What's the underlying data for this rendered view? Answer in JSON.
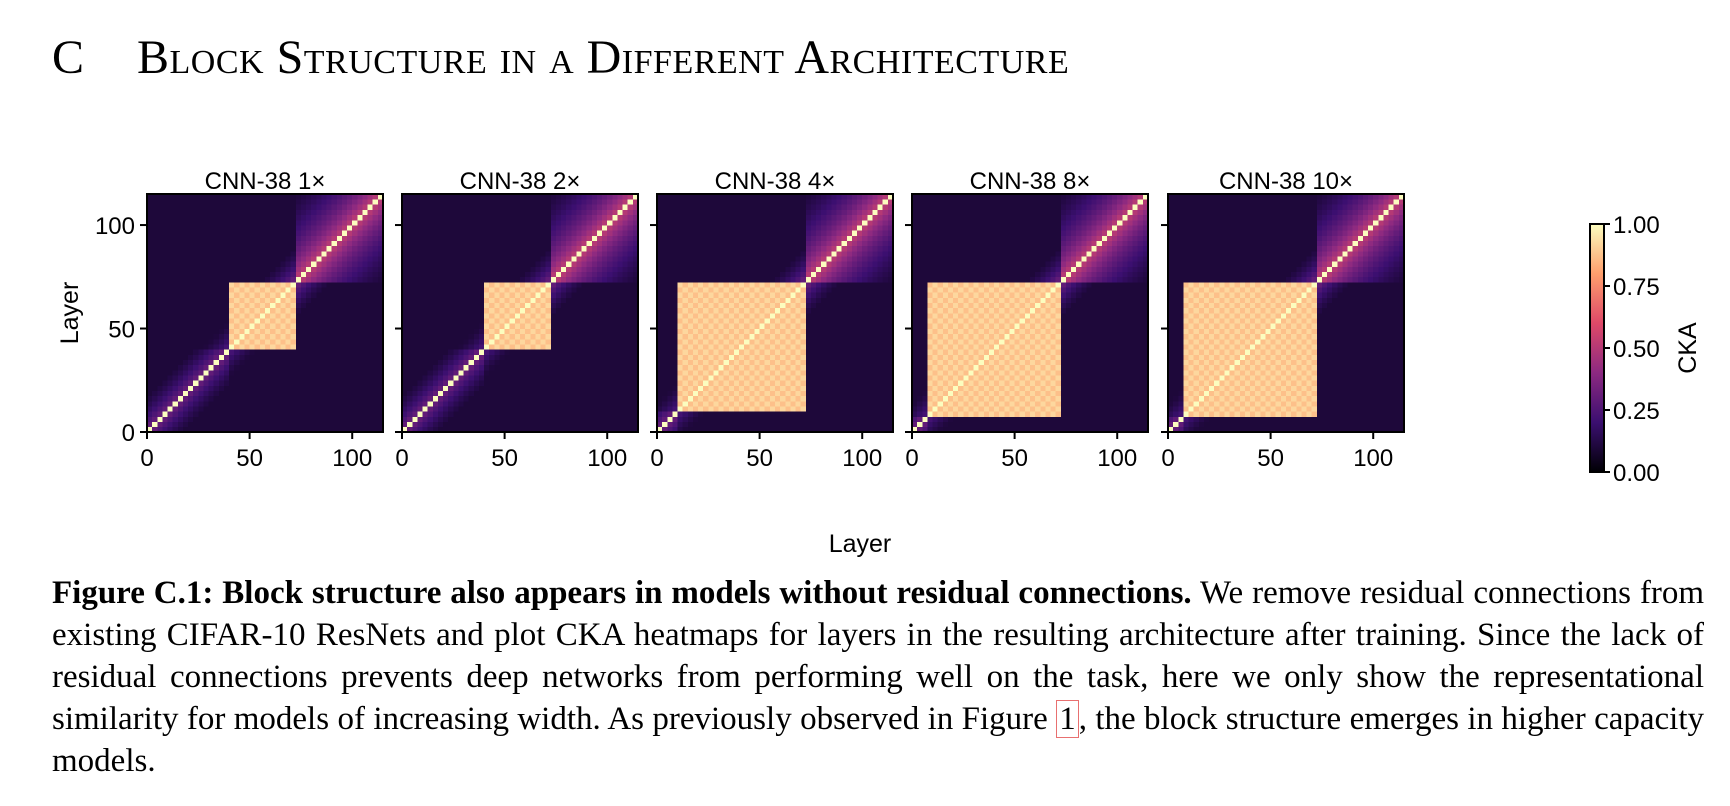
{
  "section": {
    "number": "C",
    "title": "Block Structure in a Different Architecture"
  },
  "colorbar": {
    "label": "CKA",
    "ticks": [
      "0.00",
      "0.25",
      "0.50",
      "0.75",
      "1.00"
    ],
    "colors": [
      "#000004",
      "#3b0f70",
      "#8c2981",
      "#de4968",
      "#fe9f6d",
      "#fcfdbf"
    ]
  },
  "chart_data": [
    {
      "type": "heatmap",
      "title": "CNN-38 1×",
      "xlabel": "Layer",
      "ylabel": "Layer",
      "xlim": [
        0,
        115
      ],
      "ylim": [
        0,
        115
      ],
      "x_ticks": [
        "0",
        "50",
        "100"
      ],
      "y_ticks": [
        "0",
        "50",
        "100"
      ],
      "value_range": [
        0,
        1
      ],
      "blocks": [
        [
          40,
          73
        ]
      ],
      "x_tick_values": [
        0,
        50,
        100
      ],
      "y_tick_values": [
        0,
        50,
        100
      ]
    },
    {
      "type": "heatmap",
      "title": "CNN-38 2×",
      "xlabel": "Layer",
      "ylabel": "",
      "xlim": [
        0,
        115
      ],
      "ylim": [
        0,
        115
      ],
      "x_ticks": [
        "0",
        "50",
        "100"
      ],
      "value_range": [
        0,
        1
      ],
      "blocks": [
        [
          40,
          73
        ]
      ],
      "x_tick_values": [
        0,
        50,
        100
      ]
    },
    {
      "type": "heatmap",
      "title": "CNN-38 4×",
      "xlabel": "Layer",
      "ylabel": "",
      "xlim": [
        0,
        115
      ],
      "ylim": [
        0,
        115
      ],
      "x_ticks": [
        "0",
        "50",
        "100"
      ],
      "value_range": [
        0,
        1
      ],
      "blocks": [
        [
          10,
          73
        ]
      ],
      "x_tick_values": [
        0,
        50,
        100
      ]
    },
    {
      "type": "heatmap",
      "title": "CNN-38 8×",
      "xlabel": "Layer",
      "ylabel": "",
      "xlim": [
        0,
        115
      ],
      "ylim": [
        0,
        115
      ],
      "x_ticks": [
        "0",
        "50",
        "100"
      ],
      "value_range": [
        0,
        1
      ],
      "blocks": [
        [
          8,
          73
        ]
      ],
      "x_tick_values": [
        0,
        50,
        100
      ]
    },
    {
      "type": "heatmap",
      "title": "CNN-38 10×",
      "xlabel": "Layer",
      "ylabel": "",
      "xlim": [
        0,
        115
      ],
      "ylim": [
        0,
        115
      ],
      "x_ticks": [
        "0",
        "50",
        "100"
      ],
      "value_range": [
        0,
        1
      ],
      "blocks": [
        [
          8,
          73
        ]
      ],
      "x_tick_values": [
        0,
        50,
        100
      ]
    }
  ],
  "shared_xlabel": "Layer",
  "caption": {
    "bold": "Figure C.1: Block structure also appears in models without residual connections.",
    "text": "We remove residual connections from existing CIFAR-10 ResNets and plot CKA heatmaps for layers in the resulting architecture after training. Since the lack of residual connections prevents deep networks from performing well on the task, here we only show the representational similarity for models of increasing width.  As previously observed in Figure",
    "ref": "1",
    "after": ", the block structure emerges in higher capacity models."
  }
}
